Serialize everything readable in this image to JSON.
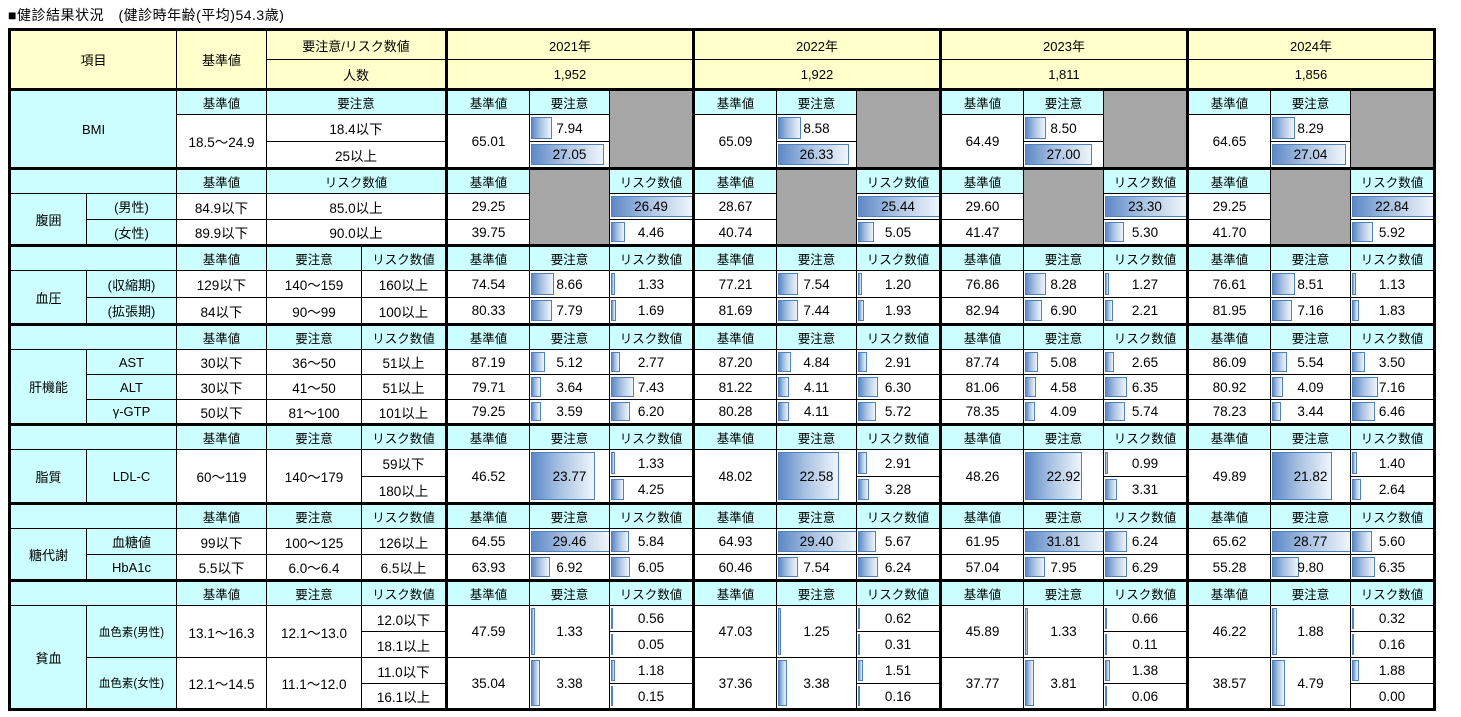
{
  "title": "■健診結果状況　(健診時年齢(平均)54.3歳)",
  "legend": {
    "item": "項目",
    "standard": "基準値",
    "warn_risk": "要注意/リスク数値",
    "count": "人数",
    "col_standard": "基準値",
    "col_warn": "要注意",
    "col_risk": "リスク数値"
  },
  "colors": {
    "header_yellow": "#FFFFCC",
    "section_cyan": "#CCFFFF",
    "disabled_grey": "#A6A6A6",
    "bar_border": "#4F81BD",
    "bar_fill": "#5E89C7"
  },
  "years": [
    {
      "label": "2021年",
      "count": "1,952"
    },
    {
      "label": "2022年",
      "count": "1,922"
    },
    {
      "label": "2023年",
      "count": "1,811"
    },
    {
      "label": "2024年",
      "count": "1,856"
    }
  ],
  "sections": [
    {
      "id": "bmi",
      "kind": "bmi",
      "group": "BMI",
      "left": {
        "standard": "18.5～24.9",
        "warn": [
          "18.4以下",
          "25以上"
        ]
      },
      "years": [
        {
          "standard": "65.01",
          "warn": [
            "7.94",
            "27.05"
          ]
        },
        {
          "standard": "65.09",
          "warn": [
            "8.58",
            "26.33"
          ]
        },
        {
          "standard": "64.49",
          "warn": [
            "8.50",
            "27.00"
          ]
        },
        {
          "standard": "64.65",
          "warn": [
            "8.29",
            "27.04"
          ]
        }
      ]
    },
    {
      "id": "waist",
      "kind": "waist",
      "group": "腹囲",
      "rows": [
        {
          "sub": "(男性)",
          "standard": "84.9以下",
          "risk": "85.0以上"
        },
        {
          "sub": "(女性)",
          "standard": "89.9以下",
          "risk": "90.0以上"
        }
      ],
      "years": [
        {
          "rows": [
            {
              "standard": "29.25",
              "risk": "26.49"
            },
            {
              "standard": "39.75",
              "risk": "4.46"
            }
          ]
        },
        {
          "rows": [
            {
              "standard": "28.67",
              "risk": "25.44"
            },
            {
              "standard": "40.74",
              "risk": "5.05"
            }
          ]
        },
        {
          "rows": [
            {
              "standard": "29.60",
              "risk": "23.30"
            },
            {
              "standard": "41.47",
              "risk": "5.30"
            }
          ]
        },
        {
          "rows": [
            {
              "standard": "29.25",
              "risk": "22.84"
            },
            {
              "standard": "41.70",
              "risk": "5.92"
            }
          ]
        }
      ]
    },
    {
      "id": "bp",
      "kind": "plain",
      "group": "血圧",
      "rows": [
        {
          "sub": "(収縮期)",
          "standard": "129以下",
          "warn": "140～159",
          "risk": "160以上"
        },
        {
          "sub": "(拡張期)",
          "standard": "84以下",
          "warn": "90～99",
          "risk": "100以上"
        }
      ],
      "years": [
        {
          "rows": [
            {
              "standard": "74.54",
              "warn": "8.66",
              "risk": "1.33"
            },
            {
              "standard": "80.33",
              "warn": "7.79",
              "risk": "1.69"
            }
          ]
        },
        {
          "rows": [
            {
              "standard": "77.21",
              "warn": "7.54",
              "risk": "1.20"
            },
            {
              "standard": "81.69",
              "warn": "7.44",
              "risk": "1.93"
            }
          ]
        },
        {
          "rows": [
            {
              "standard": "76.86",
              "warn": "8.28",
              "risk": "1.27"
            },
            {
              "standard": "82.94",
              "warn": "6.90",
              "risk": "2.21"
            }
          ]
        },
        {
          "rows": [
            {
              "standard": "76.61",
              "warn": "8.51",
              "risk": "1.13"
            },
            {
              "standard": "81.95",
              "warn": "7.16",
              "risk": "1.83"
            }
          ]
        }
      ]
    },
    {
      "id": "liver",
      "kind": "plain",
      "group": "肝機能",
      "rows": [
        {
          "sub": "AST",
          "standard": "30以下",
          "warn": "36～50",
          "risk": "51以上"
        },
        {
          "sub": "ALT",
          "standard": "30以下",
          "warn": "41～50",
          "risk": "51以上"
        },
        {
          "sub": "γ-GTP",
          "standard": "50以下",
          "warn": "81～100",
          "risk": "101以上"
        }
      ],
      "years": [
        {
          "rows": [
            {
              "standard": "87.19",
              "warn": "5.12",
              "risk": "2.77"
            },
            {
              "standard": "79.71",
              "warn": "3.64",
              "risk": "7.43"
            },
            {
              "standard": "79.25",
              "warn": "3.59",
              "risk": "6.20"
            }
          ]
        },
        {
          "rows": [
            {
              "standard": "87.20",
              "warn": "4.84",
              "risk": "2.91"
            },
            {
              "standard": "81.22",
              "warn": "4.11",
              "risk": "6.30"
            },
            {
              "standard": "80.28",
              "warn": "4.11",
              "risk": "5.72"
            }
          ]
        },
        {
          "rows": [
            {
              "standard": "87.74",
              "warn": "5.08",
              "risk": "2.65"
            },
            {
              "standard": "81.06",
              "warn": "4.58",
              "risk": "6.35"
            },
            {
              "standard": "78.35",
              "warn": "4.09",
              "risk": "5.74"
            }
          ]
        },
        {
          "rows": [
            {
              "standard": "86.09",
              "warn": "5.54",
              "risk": "3.50"
            },
            {
              "standard": "80.92",
              "warn": "4.09",
              "risk": "7.16"
            },
            {
              "standard": "78.23",
              "warn": "3.44",
              "risk": "6.46"
            }
          ]
        }
      ]
    },
    {
      "id": "lipid",
      "kind": "split2",
      "group": "脂質",
      "rows": [
        {
          "sub": "LDL-C",
          "standard": "60～119",
          "warn": "140～179",
          "risks": [
            "59以下",
            "180以上"
          ]
        }
      ],
      "years": [
        {
          "rows": [
            {
              "standard": "46.52",
              "warn": "23.77",
              "risks": [
                "1.33",
                "4.25"
              ]
            }
          ]
        },
        {
          "rows": [
            {
              "standard": "48.02",
              "warn": "22.58",
              "risks": [
                "2.91",
                "3.28"
              ]
            }
          ]
        },
        {
          "rows": [
            {
              "standard": "48.26",
              "warn": "22.92",
              "risks": [
                "0.99",
                "3.31"
              ]
            }
          ]
        },
        {
          "rows": [
            {
              "standard": "49.89",
              "warn": "21.82",
              "risks": [
                "1.40",
                "2.64"
              ]
            }
          ]
        }
      ]
    },
    {
      "id": "sugar",
      "kind": "plain",
      "group": "糖代謝",
      "rows": [
        {
          "sub": "血糖値",
          "standard": "99以下",
          "warn": "100～125",
          "risk": "126以上"
        },
        {
          "sub": "HbA1c",
          "standard": "5.5以下",
          "warn": "6.0～6.4",
          "risk": "6.5以上"
        }
      ],
      "years": [
        {
          "rows": [
            {
              "standard": "64.55",
              "warn": "29.46",
              "risk": "5.84"
            },
            {
              "standard": "63.93",
              "warn": "6.92",
              "risk": "6.05"
            }
          ]
        },
        {
          "rows": [
            {
              "standard": "64.93",
              "warn": "29.40",
              "risk": "5.67"
            },
            {
              "standard": "60.46",
              "warn": "7.54",
              "risk": "6.24"
            }
          ]
        },
        {
          "rows": [
            {
              "standard": "61.95",
              "warn": "31.81",
              "risk": "6.24"
            },
            {
              "standard": "57.04",
              "warn": "7.95",
              "risk": "6.29"
            }
          ]
        },
        {
          "rows": [
            {
              "standard": "65.62",
              "warn": "28.77",
              "risk": "5.60"
            },
            {
              "standard": "55.28",
              "warn": "9.80",
              "risk": "6.35"
            }
          ]
        }
      ]
    },
    {
      "id": "anemia",
      "kind": "split2",
      "group": "貧血",
      "rows": [
        {
          "sub": "血色素(男性)",
          "standard": "13.1～16.3",
          "warn": "12.1～13.0",
          "risks": [
            "12.0以下",
            "18.1以上"
          ]
        },
        {
          "sub": "血色素(女性)",
          "standard": "12.1～14.5",
          "warn": "11.1～12.0",
          "risks": [
            "11.0以下",
            "16.1以上"
          ]
        }
      ],
      "years": [
        {
          "rows": [
            {
              "standard": "47.59",
              "warn": "1.33",
              "risks": [
                "0.56",
                "0.05"
              ]
            },
            {
              "standard": "35.04",
              "warn": "3.38",
              "risks": [
                "1.18",
                "0.15"
              ]
            }
          ]
        },
        {
          "rows": [
            {
              "standard": "47.03",
              "warn": "1.25",
              "risks": [
                "0.62",
                "0.31"
              ]
            },
            {
              "standard": "37.36",
              "warn": "3.38",
              "risks": [
                "1.51",
                "0.16"
              ]
            }
          ]
        },
        {
          "rows": [
            {
              "standard": "45.89",
              "warn": "1.33",
              "risks": [
                "0.66",
                "0.11"
              ]
            },
            {
              "standard": "37.77",
              "warn": "3.81",
              "risks": [
                "1.38",
                "0.06"
              ]
            }
          ]
        },
        {
          "rows": [
            {
              "standard": "46.22",
              "warn": "1.88",
              "risks": [
                "0.32",
                "0.16"
              ]
            },
            {
              "standard": "38.57",
              "warn": "4.79",
              "risks": [
                "1.88",
                "0.00"
              ]
            }
          ]
        }
      ]
    }
  ]
}
